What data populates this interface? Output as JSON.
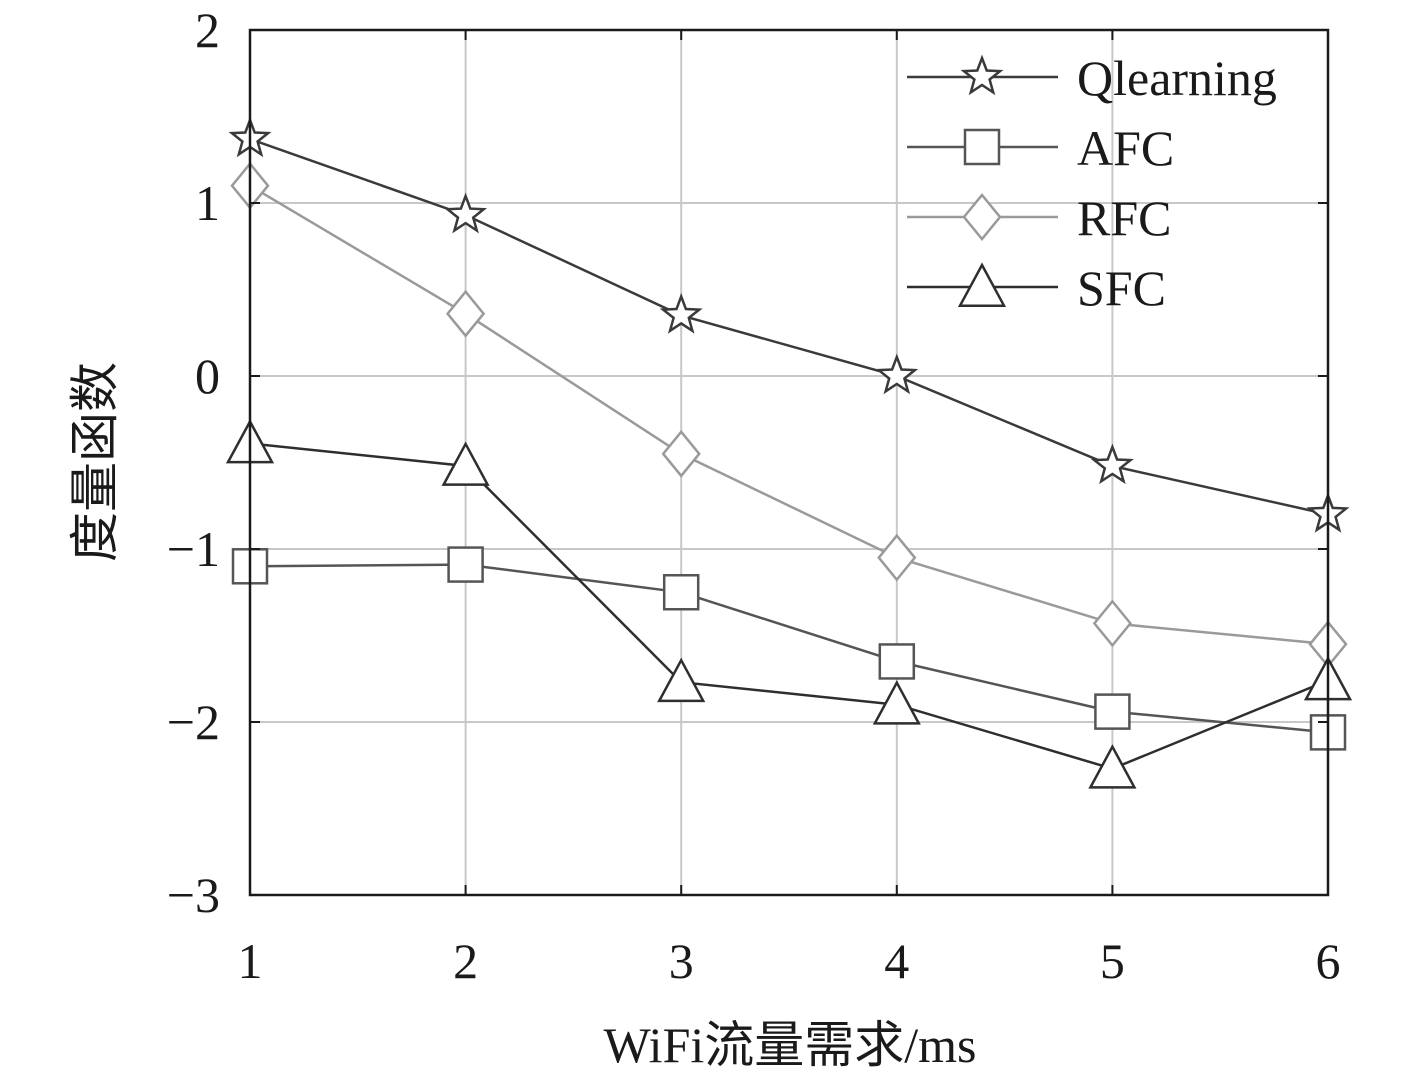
{
  "chart_data": {
    "type": "line",
    "title": "",
    "xlabel": "WiFi流量需求/ms",
    "ylabel": "度量函数",
    "x": [
      1,
      2,
      3,
      4,
      5,
      6
    ],
    "xlim": [
      1,
      6
    ],
    "ylim": [
      -3,
      2
    ],
    "xticks": [
      "1",
      "2",
      "3",
      "4",
      "5",
      "6"
    ],
    "yticks": [
      "2",
      "1",
      "0",
      "−1",
      "−2",
      "−3"
    ],
    "grid": true,
    "legend_position": "top-right",
    "series": [
      {
        "name": "Qlearning",
        "marker": "star",
        "color": "#3a3a3a",
        "values": [
          1.37,
          0.93,
          0.35,
          0.0,
          -0.52,
          -0.8
        ]
      },
      {
        "name": "AFC",
        "marker": "square",
        "color": "#555555",
        "values": [
          -1.1,
          -1.09,
          -1.25,
          -1.65,
          -1.94,
          -2.06
        ]
      },
      {
        "name": "RFC",
        "marker": "diamond",
        "color": "#9a9a9a",
        "values": [
          1.1,
          0.36,
          -0.45,
          -1.05,
          -1.43,
          -1.55
        ]
      },
      {
        "name": "SFC",
        "marker": "triangle",
        "color": "#2e2e2e",
        "values": [
          -0.39,
          -0.52,
          -1.77,
          -1.9,
          -2.27,
          -1.76
        ]
      }
    ]
  }
}
